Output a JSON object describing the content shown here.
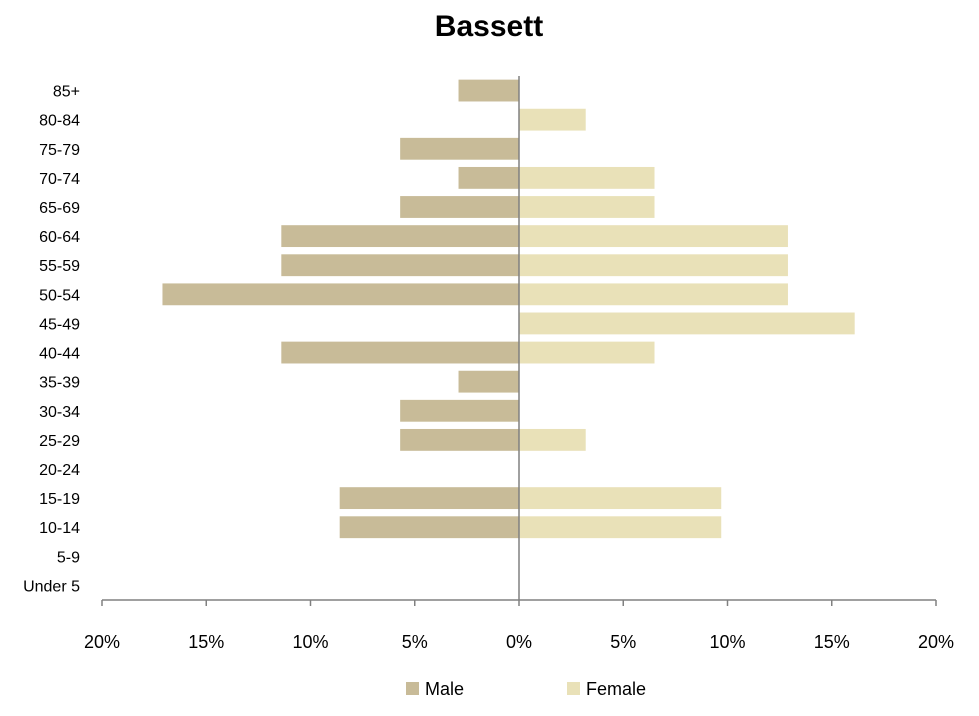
{
  "chart_data": {
    "type": "bar",
    "orientation": "horizontal",
    "title": "Bassett",
    "categories": [
      "85+",
      "80-84",
      "75-79",
      "70-74",
      "65-69",
      "60-64",
      "55-59",
      "50-54",
      "45-49",
      "40-44",
      "35-39",
      "30-34",
      "25-29",
      "20-24",
      "15-19",
      "10-14",
      "5-9",
      "Under 5"
    ],
    "series": [
      {
        "name": "Male",
        "color": "#c8bb98",
        "values": [
          2.9,
          0,
          5.7,
          2.9,
          5.7,
          11.4,
          11.4,
          17.1,
          0,
          11.4,
          2.9,
          5.7,
          5.7,
          0,
          8.6,
          8.6,
          0,
          0
        ]
      },
      {
        "name": "Female",
        "color": "#e9e1b8",
        "values": [
          0,
          3.2,
          0,
          6.5,
          6.5,
          12.9,
          12.9,
          12.9,
          16.1,
          6.5,
          0,
          0,
          3.2,
          0,
          9.7,
          9.7,
          0,
          0
        ]
      }
    ],
    "x_ticks": [
      "20%",
      "15%",
      "10%",
      "5%",
      "0%",
      "5%",
      "10%",
      "15%",
      "20%"
    ],
    "xlim": [
      -20,
      20
    ],
    "unit": "%",
    "grid": false,
    "legend_position": "bottom"
  }
}
